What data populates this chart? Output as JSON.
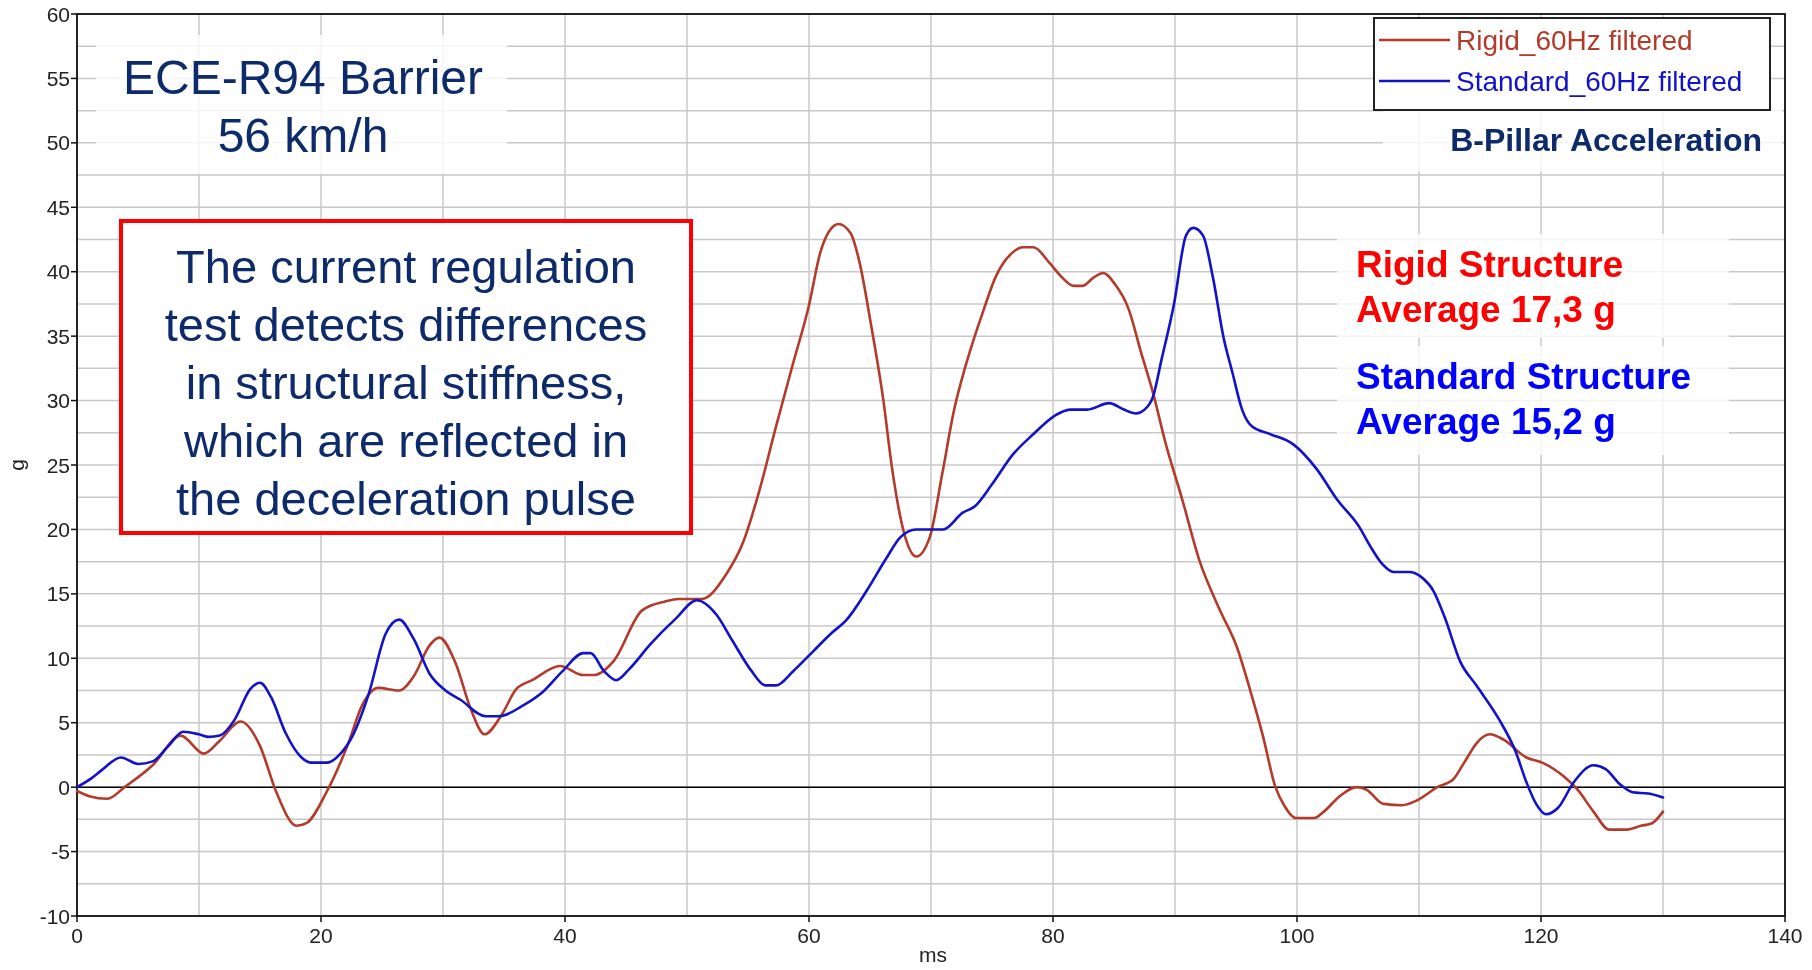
{
  "chart_data": {
    "type": "line",
    "title": "B-Pillar Acceleration",
    "xlabel": "ms",
    "ylabel": "g",
    "xlim": [
      0,
      140
    ],
    "ylim": [
      -10,
      60
    ],
    "xticks": [
      0,
      {
        "value": 10,
        "label": null
      },
      20,
      {
        "value": 30,
        "label": null
      },
      40,
      {
        "value": 50,
        "label": null
      },
      60,
      {
        "value": 70,
        "label": null
      },
      80,
      {
        "value": 90,
        "label": null
      },
      100,
      {
        "value": 110,
        "label": null
      },
      120,
      {
        "value": 130,
        "label": null
      },
      140
    ],
    "yticks": [
      -10,
      {
        "value": -7.5,
        "label": null
      },
      -5,
      {
        "value": -2.5,
        "label": null
      },
      0,
      {
        "value": 2.5,
        "label": null
      },
      5,
      {
        "value": 7.5,
        "label": null
      },
      10,
      {
        "value": 12.5,
        "label": null
      },
      15,
      {
        "value": 17.5,
        "label": null
      },
      20,
      {
        "value": 22.5,
        "label": null
      },
      25,
      {
        "value": 27.5,
        "label": null
      },
      30,
      {
        "value": 32.5,
        "label": null
      },
      35,
      {
        "value": 37.5,
        "label": null
      },
      40,
      {
        "value": 42.5,
        "label": null
      },
      45,
      {
        "value": 47.5,
        "label": null
      },
      50,
      {
        "value": 52.5,
        "label": null
      },
      55,
      {
        "value": 57.5,
        "label": null
      },
      60
    ],
    "grid": true,
    "legend": "top right",
    "ref_lines": [
      {
        "axis": "y",
        "value": 0,
        "color": "#000000"
      }
    ],
    "annotations": [
      "ECE-R94 Barrier\n56 km/h",
      "The current regulation\ntest detects differences\nin structural stiffness,\nwhich are reflected in\nthe deceleration pulse",
      "Rigid Structure\nAverage 17,3 g",
      "Standard Structure\nAverage 15,2 g"
    ],
    "series": [
      {
        "name": "Rigid_60Hz filtered",
        "color": "#b23b2b",
        "x": [
          0,
          1,
          2.5,
          3.9,
          6.2,
          8.5,
          10.4,
          11.7,
          13.4,
          15,
          16.3,
          18,
          18.8,
          20.5,
          22.2,
          23.4,
          24.7,
          26.4,
          27.6,
          28.9,
          29.7,
          31,
          32.3,
          33.4,
          34.8,
          36,
          37.3,
          39.6,
          41.5,
          42.4,
          44,
          46.3,
          48.2,
          49.3,
          51.2,
          53.2,
          54.6,
          55.9,
          57.3,
          58.7,
          60,
          60.9,
          62.1,
          62.4,
          63.4,
          64.1,
          65.1,
          66.1,
          66.8,
          67.8,
          68.8,
          69.9,
          70.9,
          71.9,
          72.9,
          74.3,
          75.3,
          76.7,
          77.5,
          78.4,
          79.7,
          80.7,
          81.7,
          82.4,
          83.4,
          84.1,
          85.1,
          86.2,
          87.2,
          88.2,
          89.2,
          90.6,
          92,
          93.6,
          95.1,
          96.2,
          97.2,
          98.2,
          99,
          99.9,
          101.4,
          102.2,
          103.5,
          104.9,
          105.7,
          107.1,
          108.6,
          109.9,
          111.5,
          112.8,
          113.7,
          114.8,
          115.8,
          116.9,
          118.8,
          120.1,
          121.9,
          123,
          124.3,
          125.6,
          126.9,
          128.2,
          129.1,
          130
        ],
        "values": [
          -0.3,
          -0.7,
          -0.9,
          0,
          1.7,
          4.0,
          2.6,
          3.6,
          5.1,
          3.2,
          -0.3,
          -3.0,
          -2.8,
          -0.3,
          3.3,
          6.4,
          7.7,
          7.5,
          8.6,
          11.0,
          11.6,
          9.7,
          6.0,
          4.1,
          5.6,
          7.6,
          8.3,
          9.4,
          8.7,
          8.7,
          9.8,
          13.7,
          14.4,
          14.6,
          14.6,
          16.5,
          19.0,
          22.9,
          28.0,
          32.9,
          37.4,
          41.4,
          43.6,
          43.7,
          43.0,
          40.9,
          35.8,
          30.0,
          24.8,
          19.7,
          17.9,
          19.4,
          24.2,
          29.3,
          32.9,
          37.0,
          39.6,
          41.5,
          41.9,
          41.9,
          40.7,
          39.6,
          38.9,
          38.9,
          39.6,
          39.9,
          39.0,
          37.1,
          33.8,
          30.6,
          26.8,
          22.3,
          17.6,
          13.9,
          10.8,
          7.4,
          4.0,
          0.1,
          -1.5,
          -2.4,
          -2.4,
          -1.9,
          -0.7,
          0.0,
          -0.2,
          -1.3,
          -1.4,
          -1.0,
          0.0,
          0.6,
          1.9,
          3.5,
          4.1,
          3.7,
          2.3,
          1.9,
          0.8,
          -0.2,
          -1.9,
          -3.3,
          -3.3,
          -3.0,
          -2.8,
          -1.9
        ]
      },
      {
        "name": "Standard_60Hz filtered",
        "color": "#1212c8",
        "x": [
          0,
          1.2,
          2,
          3.6,
          5,
          6.2,
          7.5,
          8.7,
          10,
          10.8,
          11.7,
          12.9,
          14.2,
          15,
          15.9,
          17.1,
          18.4,
          19.2,
          20.5,
          21.6,
          22.6,
          23.9,
          25.3,
          26.4,
          27.6,
          28.9,
          30.2,
          31.4,
          33.5,
          34.6,
          36.5,
          38.2,
          39.8,
          41.5,
          42.1,
          43.2,
          44.2,
          45.3,
          47,
          49.1,
          50.8,
          52.4,
          53.7,
          55.3,
          56.4,
          57.3,
          58.7,
          60.3,
          61.9,
          63,
          64.7,
          66.3,
          67.5,
          68.8,
          71,
          72.6,
          73.6,
          75,
          76.7,
          78.4,
          80.1,
          81.4,
          82.8,
          84.6,
          85.8,
          86.8,
          87.5,
          88.2,
          88.9,
          89.9,
          90.9,
          91.5,
          92.3,
          93.1,
          94,
          94.7,
          95.5,
          96.3,
          97.8,
          99.7,
          101.6,
          103.3,
          105.1,
          106,
          107,
          107.9,
          109.2,
          110.2,
          111.2,
          112.1,
          113.4,
          114.7,
          116.6,
          117.9,
          118.8,
          119.6,
          120.4,
          121.4,
          122.7,
          124.3,
          125.3,
          126.5,
          127.5,
          128.8,
          130
        ],
        "values": [
          0,
          0.7,
          1.3,
          2.3,
          1.8,
          2.0,
          3.2,
          4.3,
          4.1,
          3.9,
          4.0,
          5.2,
          7.6,
          8.1,
          7.0,
          4.2,
          2.3,
          1.9,
          1.9,
          2.6,
          4.0,
          7.2,
          11.9,
          13.0,
          11.5,
          8.8,
          7.5,
          6.8,
          5.5,
          5.5,
          6.3,
          7.4,
          9.0,
          10.4,
          10.4,
          9.0,
          8.3,
          9.2,
          11.1,
          13.1,
          14.5,
          13.4,
          11.4,
          9.0,
          7.9,
          7.9,
          9.0,
          10.5,
          12.0,
          12.9,
          15.2,
          17.7,
          19.4,
          20.0,
          20.0,
          21.3,
          21.8,
          23.5,
          25.8,
          27.4,
          28.8,
          29.3,
          29.3,
          29.8,
          29.3,
          29.0,
          29.3,
          30.3,
          33.2,
          37.4,
          42.8,
          43.4,
          42.8,
          39.6,
          34.8,
          32.2,
          29.3,
          28.0,
          27.4,
          26.6,
          24.7,
          22.3,
          20.2,
          18.7,
          17.3,
          16.7,
          16.7,
          16.3,
          15.2,
          13.2,
          9.7,
          7.9,
          5.2,
          2.8,
          0.4,
          -1.3,
          -2.1,
          -1.6,
          0.4,
          1.7,
          1.4,
          0.2,
          -0.4,
          -0.5,
          -0.8
        ]
      }
    ]
  }
}
